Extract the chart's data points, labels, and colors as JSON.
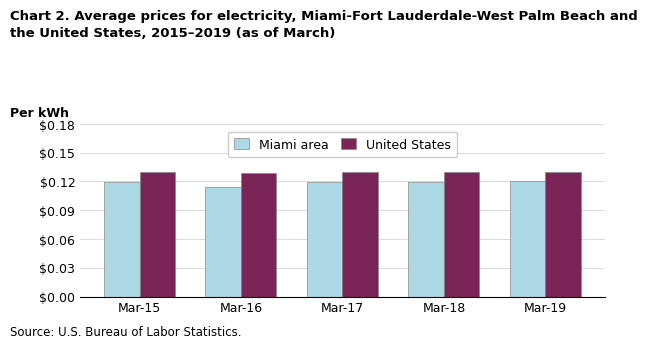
{
  "title": "Chart 2. Average prices for electricity, Miami-Fort Lauderdale-West Palm Beach and\nthe United States, 2015–2019 (as of March)",
  "ylabel": "Per kWh",
  "source": "Source: U.S. Bureau of Labor Statistics.",
  "categories": [
    "Mar-15",
    "Mar-16",
    "Mar-17",
    "Mar-18",
    "Mar-19"
  ],
  "miami_values": [
    0.119,
    0.114,
    0.119,
    0.119,
    0.12
  ],
  "us_values": [
    0.13,
    0.129,
    0.13,
    0.13,
    0.13
  ],
  "miami_color": "#ADD8E6",
  "us_color": "#7B2457",
  "bar_edge_color": "#888888",
  "ylim": [
    0.0,
    0.18
  ],
  "yticks": [
    0.0,
    0.03,
    0.06,
    0.09,
    0.12,
    0.15,
    0.18
  ],
  "legend_labels": [
    "Miami area",
    "United States"
  ],
  "background_color": "#ffffff",
  "title_fontsize": 9.5,
  "tick_fontsize": 9,
  "legend_fontsize": 9,
  "source_fontsize": 8.5,
  "ylabel_fontsize": 9
}
